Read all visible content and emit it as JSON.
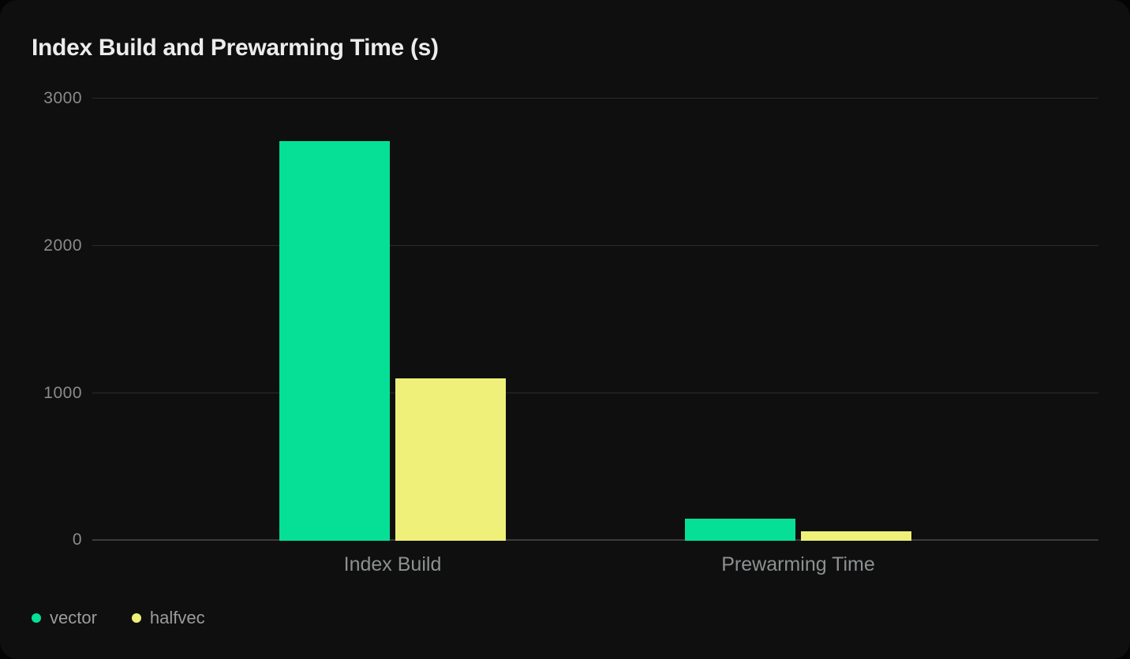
{
  "chart_data": {
    "type": "bar",
    "title": "Index Build and Prewarming Time (s)",
    "categories": [
      "Index Build",
      "Prewarming Time"
    ],
    "series": [
      {
        "name": "vector",
        "color": "#05e096",
        "values": [
          2710,
          150
        ]
      },
      {
        "name": "halfvec",
        "color": "#eef07a",
        "values": [
          1100,
          65
        ]
      }
    ],
    "xlabel": "",
    "ylabel": "",
    "ylim": [
      0,
      3000
    ],
    "yticks": [
      0,
      1000,
      2000,
      3000
    ],
    "grid": true,
    "legend_position": "bottom-left",
    "colors": {
      "card_background": "#0e0f0e",
      "gridline": "#2a2b2a",
      "baseline": "#3a3b3a",
      "title_text": "#ececec",
      "axis_text": "#8a8c8a",
      "category_text": "#8d9092",
      "legend_text": "#9b9d9b"
    }
  }
}
